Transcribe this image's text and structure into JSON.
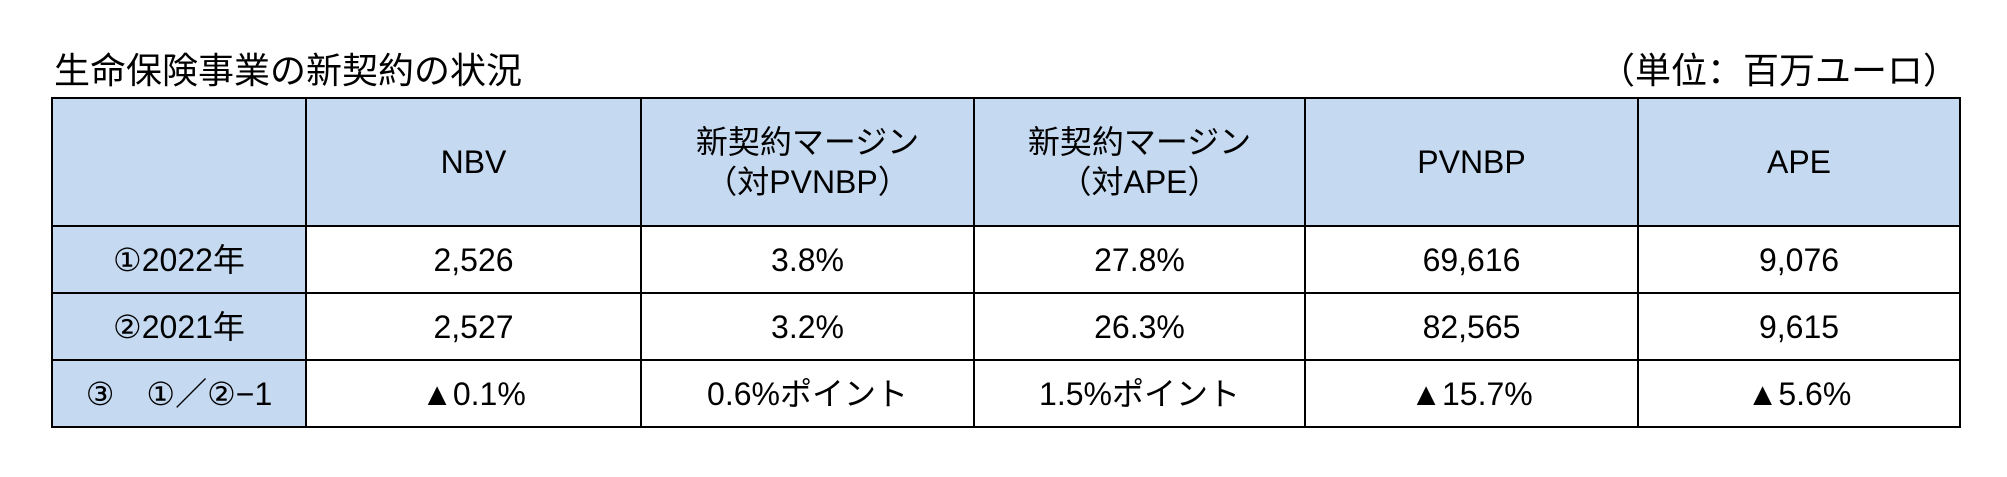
{
  "header": {
    "title": "生命保険事業の新契約の状況",
    "unit": "（単位：百万ユーロ）"
  },
  "table": {
    "columns": [
      [
        "NBV"
      ],
      [
        "新契約マージン",
        "（対PVNBP）"
      ],
      [
        "新契約マージン",
        "（対APE）"
      ],
      [
        "PVNBP"
      ],
      [
        "APE"
      ]
    ],
    "rows": [
      [
        "①2022年",
        "2,526",
        "3.8%",
        "27.8%",
        "69,616",
        "9,076"
      ],
      [
        "②2021年",
        "2,527",
        "3.2%",
        "26.3%",
        "82,565",
        "9,615"
      ],
      [
        "③　①／②−1",
        "▲0.1%",
        "0.6%ポイント",
        "1.5%ポイント",
        "▲15.7%",
        "▲5.6%"
      ]
    ]
  }
}
